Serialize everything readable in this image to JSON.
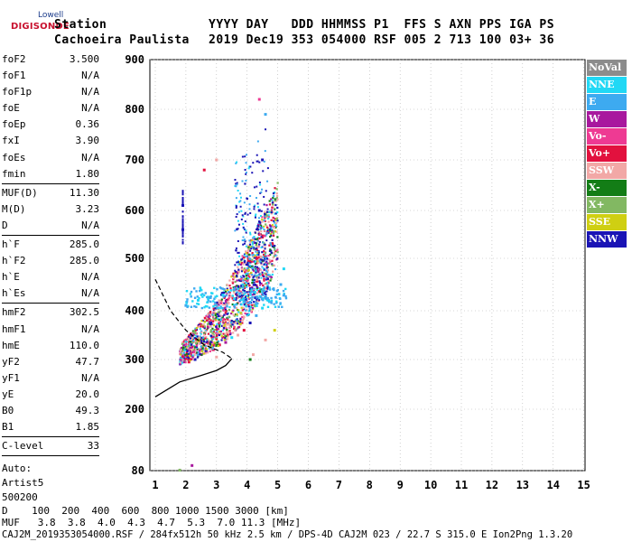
{
  "logo": {
    "top": "Lowell",
    "brand": "DIGISONDE"
  },
  "header": {
    "row1": {
      "station": "Station",
      "cols": "YYYY DAY   DDD HHMMSS P1  FFS S AXN PPS IGA PS"
    },
    "row2": {
      "name": "Cachoeira Paulista",
      "vals": "2019 Dec19 353 054000 RSF 005 2 713 100 03+ 36"
    }
  },
  "params_a": [
    {
      "k": "foF2",
      "v": "3.500"
    },
    {
      "k": "foF1",
      "v": "N/A"
    },
    {
      "k": "foF1p",
      "v": "N/A"
    },
    {
      "k": "foE",
      "v": "N/A"
    },
    {
      "k": "foEp",
      "v": "0.36"
    },
    {
      "k": "fxI",
      "v": "3.90"
    },
    {
      "k": "foEs",
      "v": "N/A"
    },
    {
      "k": "fmin",
      "v": "1.80"
    }
  ],
  "params_b": [
    {
      "k": "MUF(D)",
      "v": "11.30"
    },
    {
      "k": "M(D)",
      "v": "3.23"
    },
    {
      "k": "D",
      "v": "N/A"
    }
  ],
  "params_c": [
    {
      "k": "h`F",
      "v": "285.0"
    },
    {
      "k": "h`F2",
      "v": "285.0"
    },
    {
      "k": "h`E",
      "v": "N/A"
    },
    {
      "k": "h`Es",
      "v": "N/A"
    }
  ],
  "params_d": [
    {
      "k": "hmF2",
      "v": "302.5"
    },
    {
      "k": "hmF1",
      "v": "N/A"
    },
    {
      "k": "hmE",
      "v": "110.0"
    },
    {
      "k": "yF2",
      "v": "47.7"
    },
    {
      "k": "yF1",
      "v": "N/A"
    },
    {
      "k": "yE",
      "v": "20.0"
    },
    {
      "k": "B0",
      "v": "49.3"
    },
    {
      "k": "B1",
      "v": "1.85"
    }
  ],
  "clevel": {
    "k": "C-level",
    "v": "33"
  },
  "auto": [
    "Auto:",
    "Artist5",
    "500200"
  ],
  "legend": [
    {
      "label": "NoVal",
      "color": "#8c8c8c"
    },
    {
      "label": "NNE",
      "color": "#21d8f5"
    },
    {
      "label": "E",
      "color": "#3daaf0"
    },
    {
      "label": "W",
      "color": "#a8189e"
    },
    {
      "label": "Vo-",
      "color": "#ee3a93"
    },
    {
      "label": "Vo+",
      "color": "#e2113e"
    },
    {
      "label": "SSW",
      "color": "#f2a8a6"
    },
    {
      "label": "X-",
      "color": "#137d16"
    },
    {
      "label": "X+",
      "color": "#82b862"
    },
    {
      "label": "SSE",
      "color": "#cfcf12"
    },
    {
      "label": "NNW",
      "color": "#1a14b5"
    }
  ],
  "footer": {
    "d_row": "D    100  200  400  600  800 1000 1500 3000 [km]",
    "muf_row": "MUF   3.8  3.8  4.0  4.3  4.7  5.3  7.0 11.3 [MHz]",
    "file_row": "CAJ2M_2019353054000.RSF / 284fx512h 50 kHz 2.5 km / DPS-4D CAJ2M 023 / 22.7 S 315.0 E Ion2Png 1.3.20"
  },
  "chart_data": {
    "type": "scatter",
    "x_ticks": [
      "1",
      "2",
      "3",
      "4",
      "5",
      "6",
      "7",
      "8",
      "9",
      "10",
      "11",
      "12",
      "13",
      "14",
      "15"
    ],
    "y_ticks": [
      "80",
      "200",
      "300",
      "400",
      "500",
      "600",
      "700",
      "800",
      "900"
    ],
    "xlim": [
      1,
      15
    ],
    "ylim": [
      80,
      900
    ],
    "y_scale": "log",
    "grid": "dotted",
    "profile_solid": [
      [
        1.0,
        225
      ],
      [
        1.8,
        255
      ],
      [
        2.5,
        268
      ],
      [
        3.0,
        278
      ],
      [
        3.3,
        288
      ],
      [
        3.5,
        302
      ]
    ],
    "profile_dashed": [
      [
        1.0,
        460
      ],
      [
        1.5,
        400
      ],
      [
        2.0,
        360
      ],
      [
        2.6,
        330
      ],
      [
        3.2,
        315
      ],
      [
        3.5,
        302
      ]
    ],
    "ionogram_points_sampled": [
      [
        1.9,
        300,
        "E"
      ],
      [
        2.1,
        295,
        "Vo+"
      ],
      [
        2.3,
        300,
        "NNW"
      ],
      [
        2.5,
        310,
        "W"
      ],
      [
        2.7,
        315,
        "SSW"
      ],
      [
        2.9,
        320,
        "Vo-"
      ],
      [
        3.1,
        330,
        "Vo+"
      ],
      [
        3.3,
        335,
        "W"
      ],
      [
        3.5,
        345,
        "NNE"
      ],
      [
        3.7,
        350,
        "SSW"
      ],
      [
        3.9,
        360,
        "Vo+"
      ],
      [
        4.1,
        375,
        "NNW"
      ],
      [
        4.3,
        390,
        "E"
      ],
      [
        4.5,
        405,
        "NNE"
      ],
      [
        4.7,
        420,
        "E"
      ],
      [
        2.0,
        410,
        "E"
      ],
      [
        2.4,
        420,
        "NNE"
      ],
      [
        2.8,
        425,
        "E"
      ],
      [
        3.2,
        430,
        "NNE"
      ],
      [
        3.6,
        440,
        "E"
      ],
      [
        4.0,
        470,
        "E"
      ],
      [
        4.3,
        520,
        "NNW"
      ],
      [
        4.4,
        600,
        "NNW"
      ],
      [
        4.5,
        700,
        "NNW"
      ],
      [
        4.6,
        790,
        "E"
      ],
      [
        1.9,
        560,
        "NNW"
      ],
      [
        1.9,
        610,
        "NNW"
      ],
      [
        2.6,
        680,
        "Vo+"
      ],
      [
        3.0,
        700,
        "SSW"
      ],
      [
        4.4,
        820,
        "Vo-"
      ],
      [
        1.8,
        81,
        "X+"
      ],
      [
        2.2,
        90,
        "W"
      ],
      [
        3.0,
        305,
        "SSW"
      ],
      [
        4.2,
        310,
        "SSW"
      ],
      [
        4.6,
        340,
        "SSW"
      ],
      [
        5.1,
        450,
        "E"
      ],
      [
        5.2,
        480,
        "NNE"
      ],
      [
        4.9,
        360,
        "SSE"
      ],
      [
        3.8,
        395,
        "X+"
      ],
      [
        4.1,
        300,
        "X-"
      ]
    ]
  }
}
